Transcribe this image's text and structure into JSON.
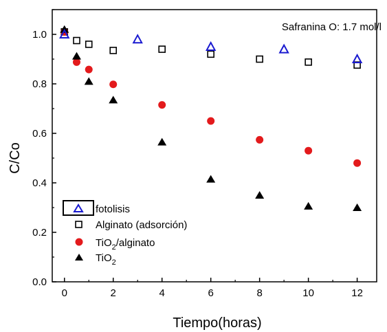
{
  "chart_data": {
    "type": "scatter",
    "title": "",
    "xlabel": "Tiempo(horas)",
    "ylabel": "C/Co",
    "annotation": "Safranina O: 1.7 mol/l",
    "xlim": [
      -0.5,
      12.8
    ],
    "ylim": [
      0.0,
      1.1
    ],
    "x_ticks": [
      0,
      2,
      4,
      6,
      8,
      10,
      12
    ],
    "x_tick_labels": [
      "0",
      "2",
      "4",
      "6",
      "8",
      "10",
      "12"
    ],
    "y_ticks": [
      0.0,
      0.2,
      0.4,
      0.6,
      0.8,
      1.0
    ],
    "y_tick_labels": [
      "0.0",
      "0.2",
      "0.4",
      "0.6",
      "0.8",
      "1.0"
    ],
    "grid": false,
    "legend_position": "bottom-left",
    "series": [
      {
        "name": "fotolisis",
        "marker": "open-triangle",
        "color": "#1a1ad0",
        "x": [
          0,
          3,
          6,
          9,
          12
        ],
        "y": [
          1.0,
          0.98,
          0.95,
          0.94,
          0.9
        ]
      },
      {
        "name": "Alginato (adsorción)",
        "marker": "open-square",
        "color": "#000000",
        "x": [
          0,
          0.5,
          1,
          2,
          4,
          6,
          8,
          10,
          12
        ],
        "y": [
          1.01,
          0.975,
          0.96,
          0.935,
          0.94,
          0.92,
          0.9,
          0.888,
          0.876
        ]
      },
      {
        "name": "TiO2/alginato",
        "label_main": "TiO",
        "label_sub": "2",
        "label_tail": "/alginato",
        "marker": "filled-circle",
        "color": "#e31a1c",
        "x": [
          0,
          0.5,
          1,
          2,
          4,
          6,
          8,
          10,
          12
        ],
        "y": [
          1.01,
          0.888,
          0.858,
          0.798,
          0.715,
          0.65,
          0.574,
          0.53,
          0.48
        ]
      },
      {
        "name": "TiO2",
        "label_main": "TiO",
        "label_sub": "2",
        "label_tail": "",
        "marker": "filled-triangle",
        "color": "#000000",
        "x": [
          0,
          0.5,
          1,
          2,
          4,
          6,
          8,
          10,
          12
        ],
        "y": [
          1.02,
          0.912,
          0.81,
          0.735,
          0.565,
          0.415,
          0.35,
          0.306,
          0.3
        ]
      }
    ]
  }
}
